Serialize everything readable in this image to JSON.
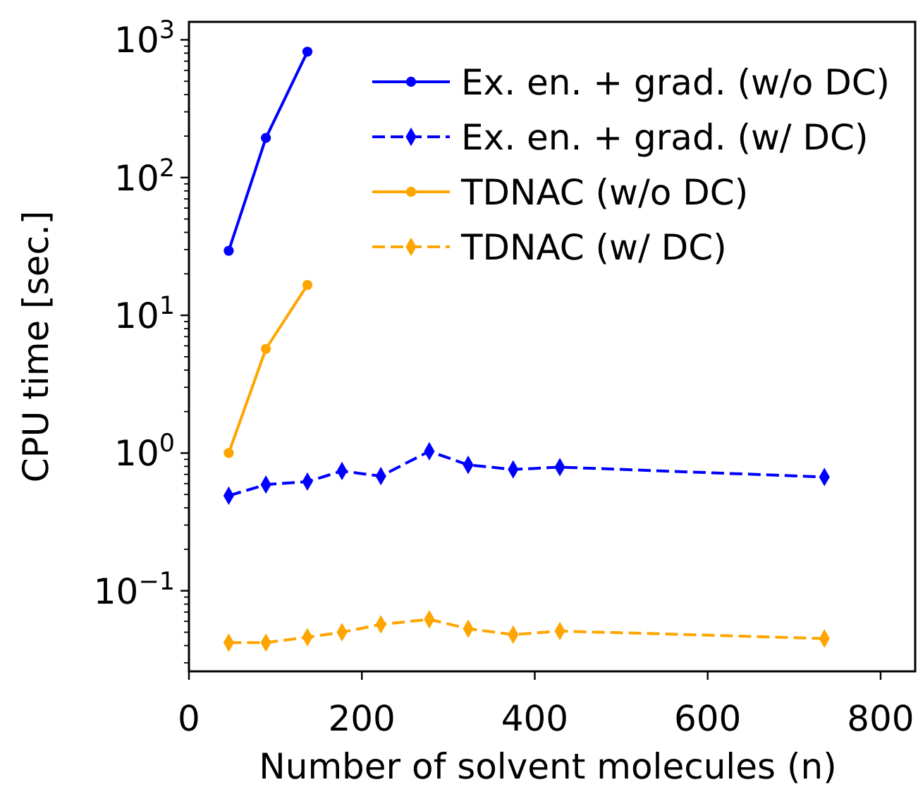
{
  "chart_data": {
    "type": "line",
    "xlabel": "Number of solvent molecules (n)",
    "ylabel": "CPU time [sec.]",
    "log": "y",
    "xlim": [
      0,
      840
    ],
    "xticks": [
      0,
      200,
      400,
      600,
      800
    ],
    "ylim": [
      0.026,
      1350
    ],
    "yticks": [
      {
        "value": 0.03,
        "label": null
      },
      {
        "value": 0.04,
        "label": null
      },
      {
        "value": 0.05,
        "label": null
      },
      {
        "value": 0.06,
        "label": null
      },
      {
        "value": 0.07,
        "label": null
      },
      {
        "value": 0.08,
        "label": null
      },
      {
        "value": 0.09,
        "label": null
      },
      {
        "value": 0.1,
        "label": "10$^{−1}$"
      },
      {
        "value": 0.2,
        "label": null
      },
      {
        "value": 0.3,
        "label": null
      },
      {
        "value": 0.4,
        "label": null
      },
      {
        "value": 0.5,
        "label": null
      },
      {
        "value": 0.6,
        "label": null
      },
      {
        "value": 0.7,
        "label": null
      },
      {
        "value": 0.8,
        "label": null
      },
      {
        "value": 0.9,
        "label": null
      },
      {
        "value": 1,
        "label": "10$^{0}$"
      },
      {
        "value": 2,
        "label": null
      },
      {
        "value": 3,
        "label": null
      },
      {
        "value": 4,
        "label": null
      },
      {
        "value": 5,
        "label": null
      },
      {
        "value": 6,
        "label": null
      },
      {
        "value": 7,
        "label": null
      },
      {
        "value": 8,
        "label": null
      },
      {
        "value": 9,
        "label": null
      },
      {
        "value": 10,
        "label": "10$^{1}$"
      },
      {
        "value": 20,
        "label": null
      },
      {
        "value": 30,
        "label": null
      },
      {
        "value": 40,
        "label": null
      },
      {
        "value": 50,
        "label": null
      },
      {
        "value": 60,
        "label": null
      },
      {
        "value": 70,
        "label": null
      },
      {
        "value": 80,
        "label": null
      },
      {
        "value": 90,
        "label": null
      },
      {
        "value": 100,
        "label": "10$^{2}$"
      },
      {
        "value": 200,
        "label": null
      },
      {
        "value": 300,
        "label": null
      },
      {
        "value": 400,
        "label": null
      },
      {
        "value": 500,
        "label": null
      },
      {
        "value": 600,
        "label": null
      },
      {
        "value": 700,
        "label": null
      },
      {
        "value": 800,
        "label": null
      },
      {
        "value": 900,
        "label": null
      },
      {
        "value": 1000,
        "label": "10$^{3}$"
      }
    ],
    "grid": false,
    "legend": "top right",
    "series": [
      {
        "name": "Ex. en. + grad. (w/o DC)",
        "color": "#0000ff",
        "marker": "circle",
        "line_style": "solid",
        "x": [
          46,
          89,
          137
        ],
        "values": [
          29.4,
          194,
          820
        ]
      },
      {
        "name": "Ex. en. + grad. (w/ DC)",
        "color": "#0000ff",
        "marker": "diamond",
        "line_style": "dashed",
        "x": [
          46,
          89,
          137,
          177,
          222,
          278,
          323,
          375,
          429,
          735
        ],
        "values": [
          0.49,
          0.59,
          0.62,
          0.74,
          0.68,
          1.03,
          0.82,
          0.76,
          0.79,
          0.67
        ]
      },
      {
        "name": "TDNAC (w/o DC)",
        "color": "#ffa500",
        "marker": "circle",
        "line_style": "solid",
        "x": [
          46,
          89,
          137
        ],
        "values": [
          1.0,
          5.7,
          16.6
        ]
      },
      {
        "name": "TDNAC (w/ DC)",
        "color": "#ffa500",
        "marker": "diamond",
        "line_style": "dashed",
        "x": [
          46,
          89,
          137,
          177,
          222,
          278,
          323,
          375,
          429,
          735
        ],
        "values": [
          0.042,
          0.042,
          0.046,
          0.05,
          0.057,
          0.062,
          0.053,
          0.048,
          0.051,
          0.045
        ]
      }
    ]
  }
}
